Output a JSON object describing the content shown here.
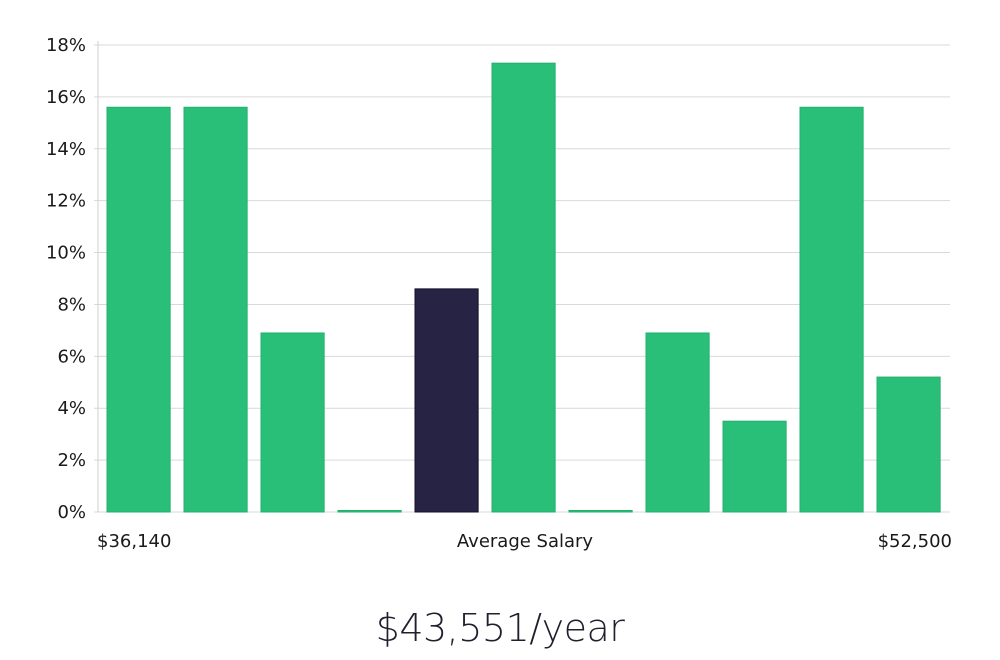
{
  "chart_data": {
    "type": "bar",
    "values": [
      15.6,
      15.6,
      6.9,
      0,
      8.6,
      17.3,
      0,
      6.9,
      3.5,
      15.6,
      5.2
    ],
    "highlight_index": 4,
    "ylim": [
      0,
      18
    ],
    "yticks": [
      0,
      2,
      4,
      6,
      8,
      10,
      12,
      14,
      16,
      18
    ],
    "ytick_format": "%",
    "x_labels": {
      "left": "$36,140",
      "center": "Average Salary",
      "right": "$52,500"
    },
    "grid": true,
    "colors": {
      "bar": "#2abf78",
      "highlight": "#262345",
      "grid": "#d9d9d9"
    }
  },
  "salary": {
    "display": "$43,551/year"
  }
}
